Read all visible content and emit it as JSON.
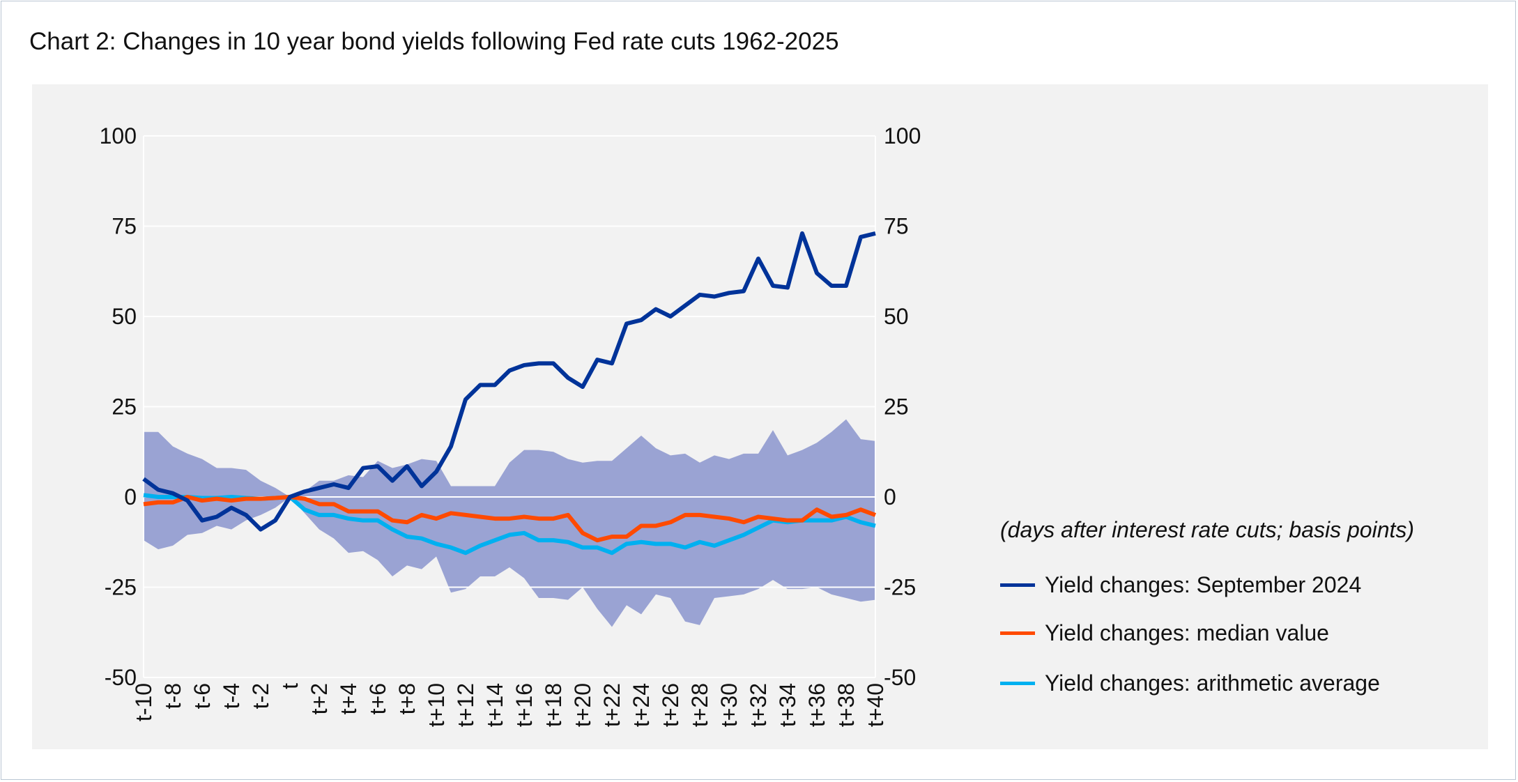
{
  "chart_data": {
    "type": "line",
    "title": "Chart 2: Changes in 10 year bond yields following Fed rate cuts 1962-2025",
    "note": "(days after interest rate cuts; basis points)",
    "x": [
      "t-10",
      "t-9",
      "t-8",
      "t-7",
      "t-6",
      "t-5",
      "t-4",
      "t-3",
      "t-2",
      "t-1",
      "t",
      "t+1",
      "t+2",
      "t+3",
      "t+4",
      "t+5",
      "t+6",
      "t+7",
      "t+8",
      "t+9",
      "t+10",
      "t+11",
      "t+12",
      "t+13",
      "t+14",
      "t+15",
      "t+16",
      "t+17",
      "t+18",
      "t+19",
      "t+20",
      "t+21",
      "t+22",
      "t+23",
      "t+24",
      "t+25",
      "t+26",
      "t+27",
      "t+28",
      "t+29",
      "t+30",
      "t+31",
      "t+32",
      "t+33",
      "t+34",
      "t+35",
      "t+36",
      "t+37",
      "t+38",
      "t+39",
      "t+40"
    ],
    "ylim": [
      -50,
      100
    ],
    "yticks": [
      100,
      75,
      50,
      25,
      0,
      -25,
      -50
    ],
    "grid": true,
    "legend_position": "right",
    "band": {
      "color": "#9aa3d3",
      "upper": [
        18,
        18,
        14,
        12,
        10.5,
        8,
        8,
        7.5,
        4.5,
        2.5,
        0,
        1.5,
        4.5,
        4.5,
        6,
        5.5,
        10,
        8,
        9,
        10.5,
        10,
        3,
        3,
        3,
        3,
        9.5,
        13,
        13,
        12.5,
        10.5,
        9.5,
        10,
        10,
        13.5,
        17,
        13.5,
        11.5,
        12,
        9.5,
        11.5,
        10.5,
        12,
        12,
        18.5,
        11.5,
        13,
        15,
        18,
        21.5,
        16,
        15.5
      ],
      "lower": [
        -12,
        -14.5,
        -13.5,
        -10.5,
        -10,
        -8,
        -9,
        -6.5,
        -5,
        -3,
        0,
        -4.5,
        -9,
        -11.5,
        -15.5,
        -15,
        -17.5,
        -22,
        -19,
        -20,
        -16.5,
        -26.5,
        -25.5,
        -22,
        -22,
        -19.5,
        -22.5,
        -28,
        -28,
        -28.5,
        -25,
        -31,
        -36,
        -30,
        -32.5,
        -27,
        -28,
        -34.5,
        -35.5,
        -28,
        -27.5,
        -27,
        -25.5,
        -23,
        -25.5,
        -25.5,
        -25,
        -27,
        -28,
        -29,
        -28.5
      ]
    },
    "series": [
      {
        "name": "Yield changes: September 2024",
        "color": "#003399",
        "values": [
          5,
          2,
          1,
          -1,
          -6.5,
          -5.5,
          -3,
          -5,
          -9,
          -6.5,
          0,
          1.5,
          2.5,
          3.5,
          2.5,
          8,
          8.5,
          4.5,
          8.5,
          3,
          7,
          14,
          27,
          31,
          31,
          35,
          36.5,
          37,
          37,
          33,
          30.5,
          38,
          37,
          48,
          49,
          52,
          50,
          53,
          56,
          55.5,
          56.5,
          57,
          66,
          58.5,
          58,
          73,
          62,
          58.5,
          58.5,
          72,
          73
        ]
      },
      {
        "name": "Yield changes: median value",
        "color": "#ff4a00",
        "values": [
          -2,
          -1.5,
          -1.5,
          0,
          -1,
          -0.5,
          -1,
          -0.5,
          -0.5,
          -0.3,
          0,
          -0.5,
          -2,
          -2,
          -4,
          -4,
          -4,
          -6.5,
          -7,
          -5,
          -6,
          -4.5,
          -5,
          -5.5,
          -6,
          -6,
          -5.5,
          -6,
          -6,
          -5,
          -10,
          -12,
          -11,
          -11,
          -8,
          -8,
          -7,
          -5,
          -5,
          -5.5,
          -6,
          -7,
          -5.5,
          -6,
          -6.5,
          -6.5,
          -3.5,
          -5.5,
          -5,
          -3.5,
          -5
        ]
      },
      {
        "name": "Yield changes: arithmetic average",
        "color": "#00b0f0",
        "values": [
          0.5,
          0,
          0,
          0,
          -0.3,
          -0.3,
          0,
          -0.3,
          -0.5,
          -0.3,
          0,
          -3.5,
          -5,
          -5,
          -6,
          -6.5,
          -6.5,
          -9,
          -11,
          -11.5,
          -13,
          -14,
          -15.5,
          -13.5,
          -12,
          -10.5,
          -10,
          -12,
          -12,
          -12.5,
          -14,
          -14,
          -15.5,
          -13,
          -12.5,
          -13,
          -13,
          -14,
          -12.5,
          -13.5,
          -12,
          -10.5,
          -8.5,
          -6.5,
          -7,
          -6.5,
          -6.5,
          -6.5,
          -5.5,
          -7,
          -8
        ]
      }
    ]
  }
}
